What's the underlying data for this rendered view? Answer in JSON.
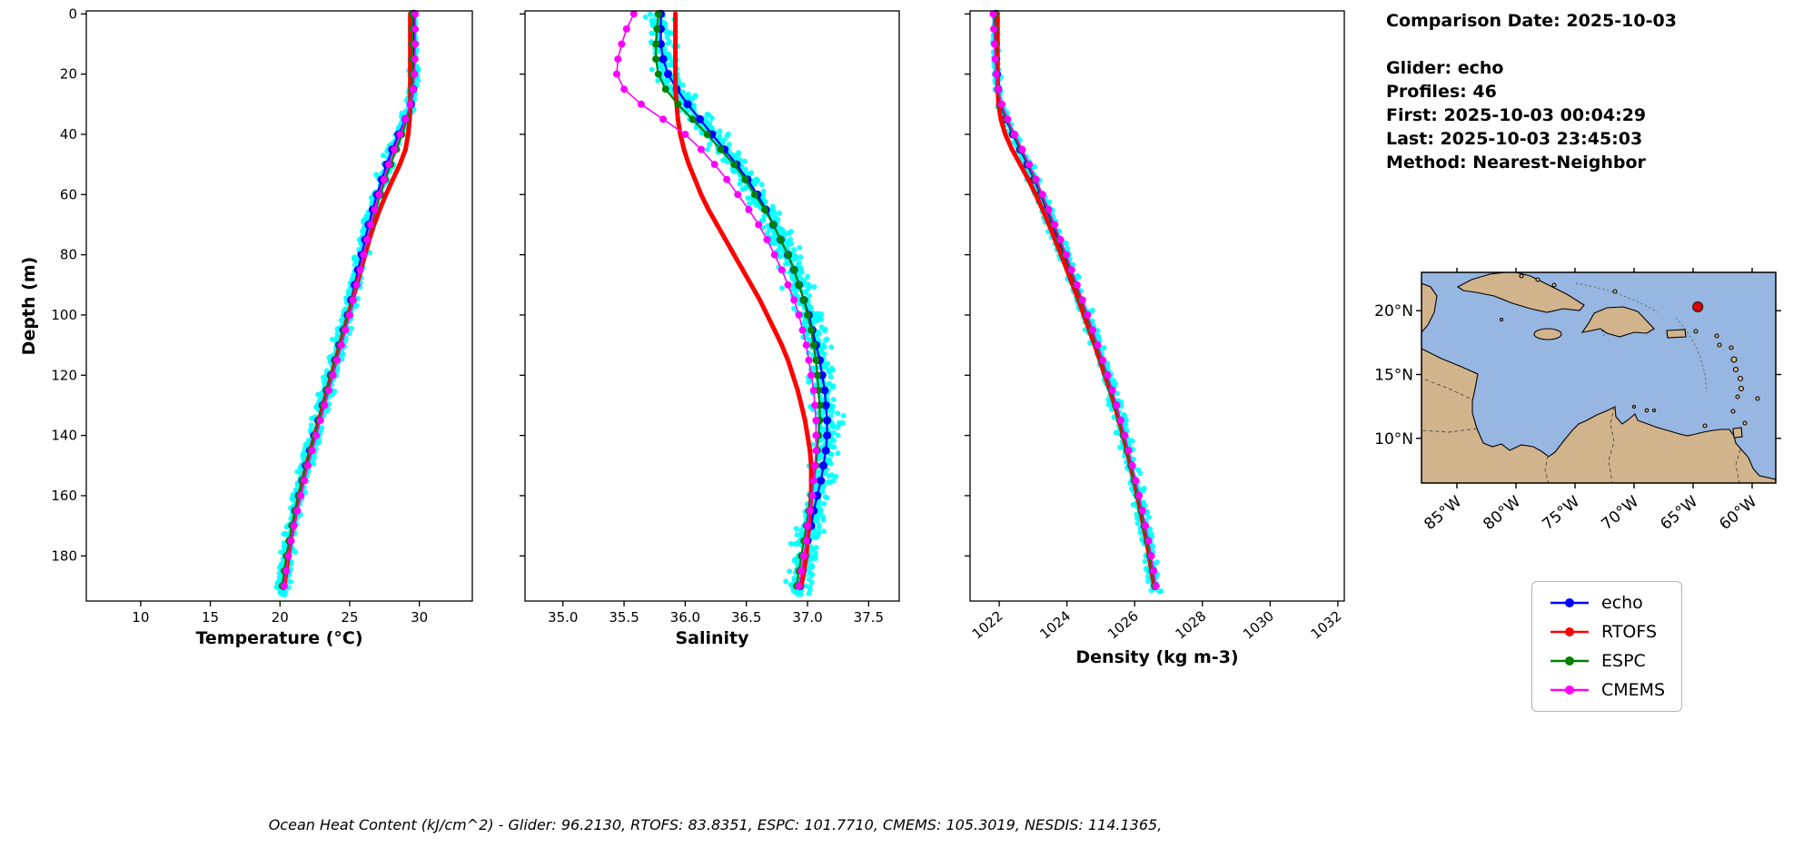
{
  "info_panel": {
    "comparison_date": "Comparison Date: 2025-10-03",
    "glider": "Glider: echo",
    "profiles": "Profiles: 46",
    "first": "First: 2025-10-03 00:04:29",
    "last": "Last: 2025-10-03 23:45:03",
    "method": "Method: Nearest-Neighbor"
  },
  "footer": {
    "text": "Ocean Heat Content (kJ/cm^2) - Glider: 96.2130,  RTOFS: 83.8351,  ESPC: 101.7710,  CMEMS: 105.3019,  NESDIS: 114.1365,"
  },
  "legend": [
    {
      "label": "echo",
      "color": "#0000ff"
    },
    {
      "label": "RTOFS",
      "color": "#ff0000"
    },
    {
      "label": "ESPC",
      "color": "#008000"
    },
    {
      "label": "CMEMS",
      "color": "#ff00ff"
    }
  ],
  "map": {
    "extent": {
      "lon_min": -88,
      "lon_max": -58,
      "lat_min": 6.5,
      "lat_max": 23
    },
    "lat_ticks": [
      {
        "label": "20°N",
        "lat": 20
      },
      {
        "label": "15°N",
        "lat": 15
      },
      {
        "label": "10°N",
        "lat": 10
      }
    ],
    "lon_ticks": [
      {
        "label": "85°W",
        "lon": -85
      },
      {
        "label": "80°W",
        "lon": -80
      },
      {
        "label": "75°W",
        "lon": -75
      },
      {
        "label": "70°W",
        "lon": -70
      },
      {
        "label": "65°W",
        "lon": -65
      },
      {
        "label": "60°W",
        "lon": -60
      }
    ],
    "glider_position": {
      "lon": -64.6,
      "lat": 20.3,
      "color": "#e00000"
    },
    "ocean_color": "#97b6e1",
    "land_color": "#d2b48c"
  },
  "chart_data": [
    {
      "id": "temperature-profile",
      "type": "line",
      "xlabel": "Temperature (°C)",
      "ylabel": "Depth (m)",
      "xlim": [
        6.1,
        33.8
      ],
      "xticks": [
        10,
        15,
        20,
        25,
        30
      ],
      "xtick_labels": [
        "10",
        "15",
        "20",
        "25",
        "30"
      ],
      "xtick_rotation": false,
      "ylim": [
        -1,
        195
      ],
      "yticks": [
        0,
        20,
        40,
        60,
        80,
        100,
        120,
        140,
        160,
        180
      ],
      "show_ytick_labels": true,
      "depths": [
        0,
        5,
        10,
        15,
        20,
        25,
        30,
        35,
        40,
        45,
        50,
        55,
        60,
        65,
        70,
        75,
        80,
        85,
        90,
        95,
        100,
        105,
        110,
        115,
        120,
        125,
        130,
        135,
        140,
        145,
        150,
        155,
        160,
        165,
        170,
        175,
        180,
        185,
        190
      ],
      "series": [
        {
          "name": "echo",
          "color": "#0000ff",
          "line_width": 2.2,
          "marker_radius": 4.5,
          "values": [
            29.6,
            29.6,
            29.6,
            29.6,
            29.6,
            29.55,
            29.4,
            29.0,
            28.5,
            28.05,
            27.65,
            27.3,
            26.95,
            26.65,
            26.35,
            26.1,
            25.85,
            25.6,
            25.35,
            25.1,
            24.85,
            24.55,
            24.25,
            23.95,
            23.65,
            23.35,
            23.05,
            22.75,
            22.45,
            22.15,
            21.85,
            21.6,
            21.35,
            21.1,
            20.9,
            20.7,
            20.55,
            20.4,
            20.25
          ]
        },
        {
          "name": "RTOFS",
          "color": "#ff0000",
          "line_width": 5,
          "marker_radius": 2.5,
          "values": [
            29.35,
            29.35,
            29.35,
            29.35,
            29.35,
            29.35,
            29.35,
            29.3,
            29.2,
            29.0,
            28.6,
            28.1,
            27.6,
            27.15,
            26.75,
            26.4,
            26.1,
            25.8,
            25.5,
            25.2,
            24.9,
            24.6,
            24.3,
            24.0,
            23.7,
            23.4,
            23.1,
            22.8,
            22.5,
            22.2,
            21.9,
            21.65,
            21.4,
            21.15,
            20.95,
            20.75,
            20.6,
            20.45,
            20.3
          ]
        },
        {
          "name": "ESPC",
          "color": "#008000",
          "line_width": 2.2,
          "marker_radius": 4,
          "values": [
            29.5,
            29.5,
            29.5,
            29.5,
            29.5,
            29.45,
            29.35,
            29.1,
            28.75,
            28.35,
            27.95,
            27.55,
            27.2,
            26.85,
            26.55,
            26.25,
            26.0,
            25.75,
            25.5,
            25.2,
            24.9,
            24.6,
            24.3,
            24.0,
            23.7,
            23.4,
            23.1,
            22.8,
            22.5,
            22.2,
            21.9,
            21.6,
            21.35,
            21.1,
            20.85,
            20.65,
            20.45,
            20.3,
            20.15
          ]
        },
        {
          "name": "CMEMS",
          "color": "#ff00ff",
          "line_width": 1.6,
          "marker_radius": 4,
          "values": [
            29.7,
            29.7,
            29.7,
            29.68,
            29.65,
            29.55,
            29.35,
            29.0,
            28.6,
            28.2,
            27.8,
            27.45,
            27.1,
            26.8,
            26.5,
            26.25,
            26.0,
            25.75,
            25.5,
            25.25,
            25.0,
            24.7,
            24.4,
            24.1,
            23.8,
            23.5,
            23.2,
            22.9,
            22.6,
            22.3,
            22.0,
            21.75,
            21.5,
            21.25,
            21.0,
            20.8,
            20.6,
            20.45,
            20.3
          ]
        }
      ],
      "scatter": {
        "name": "glider-raw-observations",
        "color": "#00ffff",
        "count": 900,
        "jitter": 0.6,
        "jitter_profile": "grow",
        "seed": 7,
        "max_depth": 193
      }
    },
    {
      "id": "salinity-profile",
      "type": "line",
      "xlabel": "Salinity",
      "ylabel": "",
      "xlim": [
        34.69,
        37.75
      ],
      "xticks": [
        35.0,
        35.5,
        36.0,
        36.5,
        37.0,
        37.5
      ],
      "xtick_labels": [
        "35.0",
        "35.5",
        "36.0",
        "36.5",
        "37.0",
        "37.5"
      ],
      "xtick_rotation": false,
      "ylim": [
        -1,
        195
      ],
      "yticks": [
        0,
        20,
        40,
        60,
        80,
        100,
        120,
        140,
        160,
        180
      ],
      "show_ytick_labels": false,
      "depths": [
        0,
        5,
        10,
        15,
        20,
        25,
        30,
        35,
        40,
        45,
        50,
        55,
        60,
        65,
        70,
        75,
        80,
        85,
        90,
        95,
        100,
        105,
        110,
        115,
        120,
        125,
        130,
        135,
        140,
        145,
        150,
        155,
        160,
        165,
        170,
        175,
        180,
        185,
        190
      ],
      "series": [
        {
          "name": "echo",
          "color": "#0000ff",
          "line_width": 2.2,
          "marker_radius": 4.5,
          "values": [
            35.8,
            35.8,
            35.8,
            35.82,
            35.86,
            35.93,
            36.02,
            36.12,
            36.22,
            36.32,
            36.42,
            36.51,
            36.59,
            36.66,
            36.72,
            36.78,
            36.84,
            36.89,
            36.93,
            36.97,
            37.01,
            37.04,
            37.07,
            37.1,
            37.12,
            37.14,
            37.15,
            37.16,
            37.16,
            37.15,
            37.13,
            37.11,
            37.08,
            37.05,
            37.03,
            37.0,
            36.98,
            36.96,
            36.94
          ]
        },
        {
          "name": "RTOFS",
          "color": "#ff0000",
          "line_width": 5,
          "marker_radius": 2.5,
          "values": [
            35.92,
            35.92,
            35.92,
            35.92,
            35.92,
            35.92,
            35.93,
            35.94,
            35.96,
            35.99,
            36.03,
            36.08,
            36.13,
            36.19,
            36.26,
            36.33,
            36.4,
            36.47,
            36.54,
            36.61,
            36.67,
            36.73,
            36.79,
            36.84,
            36.88,
            36.92,
            36.95,
            36.98,
            37.0,
            37.02,
            37.03,
            37.03,
            37.03,
            37.02,
            37.01,
            37.0,
            36.99,
            36.97,
            36.95
          ]
        },
        {
          "name": "ESPC",
          "color": "#008000",
          "line_width": 2.2,
          "marker_radius": 4,
          "values": [
            35.78,
            35.77,
            35.76,
            35.76,
            35.78,
            35.84,
            35.94,
            36.06,
            36.18,
            36.29,
            36.4,
            36.49,
            36.57,
            36.65,
            36.72,
            36.78,
            36.84,
            36.89,
            36.93,
            36.97,
            37.0,
            37.03,
            37.05,
            37.07,
            37.08,
            37.09,
            37.1,
            37.1,
            37.09,
            37.08,
            37.07,
            37.05,
            37.03,
            37.01,
            36.99,
            36.97,
            36.95,
            36.93,
            36.91
          ]
        },
        {
          "name": "CMEMS",
          "color": "#ff00ff",
          "line_width": 1.6,
          "marker_radius": 4,
          "values": [
            35.58,
            35.52,
            35.48,
            35.45,
            35.44,
            35.5,
            35.64,
            35.82,
            36.0,
            36.13,
            36.24,
            36.34,
            36.43,
            36.52,
            36.6,
            36.67,
            36.73,
            36.79,
            36.84,
            36.89,
            36.93,
            36.96,
            36.99,
            37.01,
            37.03,
            37.05,
            37.06,
            37.07,
            37.07,
            37.07,
            37.06,
            37.05,
            37.04,
            37.02,
            37.0,
            36.99,
            36.97,
            36.95,
            36.93
          ]
        }
      ],
      "scatter": {
        "name": "glider-raw-observations",
        "color": "#00ffff",
        "count": 900,
        "jitter": 0.13,
        "jitter_profile": "flat",
        "seed": 11,
        "max_depth": 193
      }
    },
    {
      "id": "density-profile",
      "type": "line",
      "xlabel": "Density (kg m-3)",
      "ylabel": "",
      "xlim": [
        1021.14,
        1032.19
      ],
      "xticks": [
        1022,
        1024,
        1026,
        1028,
        1030,
        1032
      ],
      "xtick_labels": [
        "1022",
        "1024",
        "1026",
        "1028",
        "1030",
        "1032"
      ],
      "xtick_rotation": true,
      "ylim": [
        -1,
        195
      ],
      "yticks": [
        0,
        20,
        40,
        60,
        80,
        100,
        120,
        140,
        160,
        180
      ],
      "show_ytick_labels": false,
      "depths": [
        0,
        5,
        10,
        15,
        20,
        25,
        30,
        35,
        40,
        45,
        50,
        55,
        60,
        65,
        70,
        75,
        80,
        85,
        90,
        95,
        100,
        105,
        110,
        115,
        120,
        125,
        130,
        135,
        140,
        145,
        150,
        155,
        160,
        165,
        170,
        175,
        180,
        185,
        190
      ],
      "series": [
        {
          "name": "echo",
          "color": "#0000ff",
          "line_width": 2.2,
          "marker_radius": 4.5,
          "values": [
            1021.9,
            1021.9,
            1021.9,
            1021.91,
            1021.93,
            1021.97,
            1022.05,
            1022.2,
            1022.4,
            1022.62,
            1022.83,
            1023.03,
            1023.22,
            1023.4,
            1023.58,
            1023.75,
            1023.92,
            1024.08,
            1024.24,
            1024.4,
            1024.56,
            1024.72,
            1024.88,
            1025.03,
            1025.18,
            1025.32,
            1025.45,
            1025.57,
            1025.68,
            1025.79,
            1025.9,
            1026.0,
            1026.1,
            1026.2,
            1026.29,
            1026.38,
            1026.46,
            1026.53,
            1026.6
          ]
        },
        {
          "name": "RTOFS",
          "color": "#ff0000",
          "line_width": 5,
          "marker_radius": 2.5,
          "values": [
            1021.95,
            1021.95,
            1021.95,
            1021.95,
            1021.95,
            1021.96,
            1021.98,
            1022.05,
            1022.18,
            1022.38,
            1022.62,
            1022.86,
            1023.08,
            1023.28,
            1023.47,
            1023.65,
            1023.83,
            1024.0,
            1024.17,
            1024.34,
            1024.5,
            1024.66,
            1024.82,
            1024.97,
            1025.12,
            1025.27,
            1025.41,
            1025.54,
            1025.66,
            1025.77,
            1025.88,
            1025.98,
            1026.08,
            1026.17,
            1026.26,
            1026.35,
            1026.43,
            1026.5,
            1026.57
          ]
        },
        {
          "name": "ESPC",
          "color": "#008000",
          "line_width": 2.2,
          "marker_radius": 4,
          "values": [
            1021.88,
            1021.88,
            1021.88,
            1021.89,
            1021.91,
            1021.96,
            1022.06,
            1022.22,
            1022.43,
            1022.65,
            1022.86,
            1023.06,
            1023.25,
            1023.43,
            1023.61,
            1023.78,
            1023.95,
            1024.11,
            1024.27,
            1024.43,
            1024.58,
            1024.73,
            1024.88,
            1025.03,
            1025.17,
            1025.31,
            1025.44,
            1025.56,
            1025.67,
            1025.78,
            1025.89,
            1025.99,
            1026.09,
            1026.19,
            1026.28,
            1026.37,
            1026.45,
            1026.52,
            1026.59
          ]
        },
        {
          "name": "CMEMS",
          "color": "#ff00ff",
          "line_width": 1.6,
          "marker_radius": 4,
          "values": [
            1021.82,
            1021.84,
            1021.86,
            1021.88,
            1021.91,
            1021.97,
            1022.08,
            1022.25,
            1022.46,
            1022.68,
            1022.89,
            1023.09,
            1023.28,
            1023.46,
            1023.64,
            1023.81,
            1023.98,
            1024.14,
            1024.3,
            1024.46,
            1024.61,
            1024.76,
            1024.91,
            1025.06,
            1025.2,
            1025.34,
            1025.47,
            1025.59,
            1025.71,
            1025.82,
            1025.93,
            1026.03,
            1026.13,
            1026.23,
            1026.32,
            1026.41,
            1026.49,
            1026.56,
            1026.63
          ]
        }
      ],
      "scatter": {
        "name": "glider-raw-observations",
        "color": "#00ffff",
        "count": 700,
        "jitter": 0.22,
        "jitter_profile": "grow",
        "seed": 13,
        "max_depth": 193
      }
    }
  ]
}
